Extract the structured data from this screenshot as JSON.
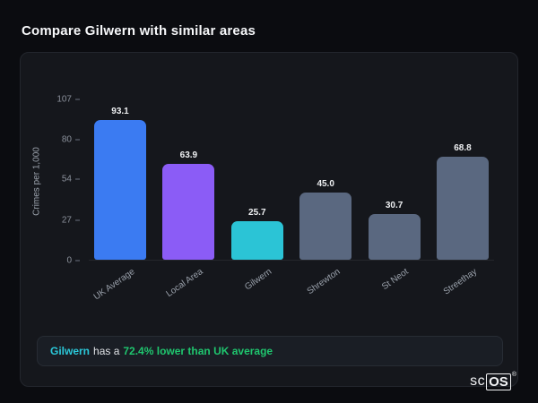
{
  "page": {
    "title": "Compare Gilwern with similar areas"
  },
  "chart_data": {
    "type": "bar",
    "categories": [
      "UK Average",
      "Local Area",
      "Gilwern",
      "Shrewton",
      "St Neot",
      "Streethay"
    ],
    "values": [
      93.1,
      63.9,
      25.7,
      45.0,
      30.7,
      68.8
    ],
    "bar_colors": [
      "#3b7bf2",
      "#8b5cf6",
      "#2bc4d6",
      "#5a6880",
      "#5a6880",
      "#5a6880"
    ],
    "title": "",
    "xlabel": "",
    "ylabel": "Crimes per 1,000",
    "yticks": [
      107,
      80,
      54,
      27,
      0
    ],
    "ylim": [
      0,
      107
    ],
    "grid": false,
    "legend": "none"
  },
  "callout": {
    "subject": "Gilwern",
    "middle": "has a",
    "highlight": "72.4% lower than UK average"
  },
  "logo": {
    "prefix": "sc",
    "boxed": "OS",
    "reg": "®"
  }
}
